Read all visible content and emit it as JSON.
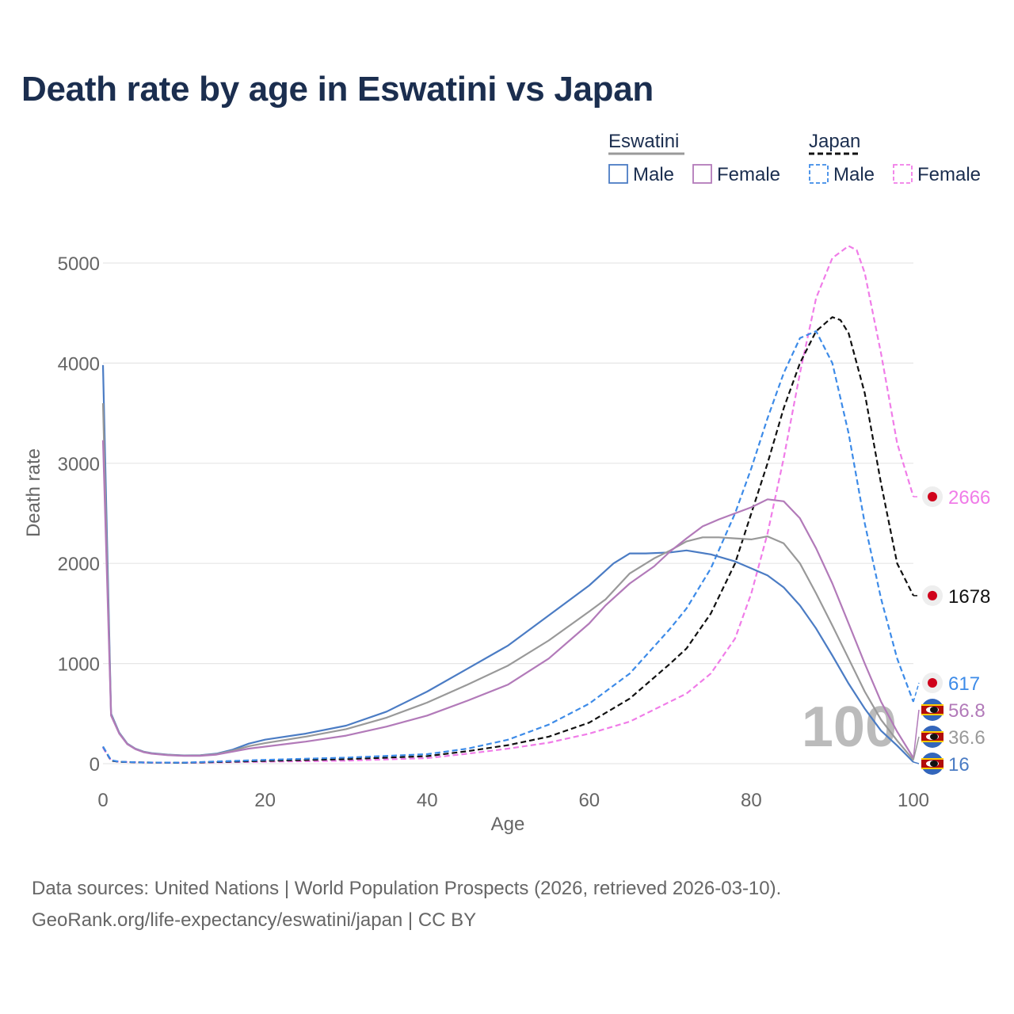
{
  "title": "Death rate by age in Eswatini vs Japan",
  "legend": {
    "groups": [
      {
        "name": "Eswatini",
        "color": "#999999",
        "dash": "solid",
        "items": [
          {
            "label": "Male",
            "color": "#4b7cc4",
            "dash": "solid"
          },
          {
            "label": "Female",
            "color": "#b27ab9",
            "dash": "solid"
          }
        ]
      },
      {
        "name": "Japan",
        "color": "#111111",
        "dash": "dashed",
        "items": [
          {
            "label": "Male",
            "color": "#3d8be8",
            "dash": "dashed"
          },
          {
            "label": "Female",
            "color": "#f07ce8",
            "dash": "dashed"
          }
        ]
      }
    ]
  },
  "sources": {
    "line1": "Data sources: United Nations | World Population Prospects (2026, retrieved 2026-03-10).",
    "line2": "GeoRank.org/life-expectancy/eswatini/japan | CC BY"
  },
  "chart_data": {
    "type": "line",
    "title": "Death rate by age in Eswatini vs Japan",
    "xlabel": "Age",
    "ylabel": "Death rate",
    "xlim": [
      0,
      100
    ],
    "ylim": [
      0,
      5200
    ],
    "xticks": [
      0,
      20,
      40,
      60,
      80,
      100
    ],
    "yticks": [
      0,
      1000,
      2000,
      3000,
      4000,
      5000
    ],
    "grid": true,
    "watermark": "100",
    "series": [
      {
        "name": "Japan Female",
        "country": "Japan",
        "sex": "Female",
        "color": "#f07ce8",
        "dash": "dashed",
        "end_label": "2666",
        "x": [
          0,
          1,
          2,
          5,
          10,
          20,
          30,
          40,
          45,
          50,
          55,
          60,
          65,
          70,
          72,
          75,
          78,
          80,
          82,
          84,
          86,
          88,
          90,
          92,
          93,
          94,
          96,
          98,
          100
        ],
        "values": [
          160,
          30,
          18,
          12,
          9,
          20,
          30,
          55,
          100,
          150,
          210,
          300,
          420,
          620,
          700,
          900,
          1250,
          1700,
          2300,
          3050,
          3900,
          4650,
          5050,
          5170,
          5130,
          4900,
          4100,
          3200,
          2666
        ]
      },
      {
        "name": "Japan Total",
        "country": "Japan",
        "sex": "Total",
        "color": "#111111",
        "dash": "dashed",
        "end_label": "1678",
        "x": [
          0,
          1,
          2,
          5,
          10,
          20,
          30,
          40,
          45,
          50,
          55,
          60,
          65,
          70,
          72,
          75,
          78,
          80,
          82,
          84,
          86,
          88,
          90,
          91,
          92,
          94,
          96,
          98,
          100
        ],
        "values": [
          170,
          30,
          18,
          12,
          9,
          28,
          45,
          75,
          125,
          185,
          270,
          410,
          650,
          1000,
          1150,
          1500,
          2000,
          2500,
          3000,
          3550,
          4000,
          4320,
          4460,
          4430,
          4300,
          3700,
          2800,
          2000,
          1678
        ]
      },
      {
        "name": "Japan Male",
        "country": "Japan",
        "sex": "Male",
        "color": "#3d8be8",
        "dash": "dashed",
        "end_label": "617",
        "x": [
          0,
          1,
          2,
          5,
          10,
          20,
          30,
          40,
          45,
          50,
          55,
          60,
          65,
          70,
          72,
          75,
          78,
          80,
          82,
          84,
          86,
          88,
          90,
          92,
          94,
          96,
          98,
          100
        ],
        "values": [
          170,
          35,
          20,
          12,
          10,
          38,
          60,
          95,
          150,
          240,
          390,
          600,
          900,
          1350,
          1550,
          1950,
          2500,
          2950,
          3450,
          3900,
          4250,
          4320,
          4000,
          3300,
          2400,
          1650,
          1050,
          617
        ]
      },
      {
        "name": "Eswatini Male",
        "country": "Eswatini",
        "sex": "Male",
        "color": "#4b7cc4",
        "dash": "solid",
        "end_label": "16",
        "x": [
          0,
          1,
          2,
          3,
          4,
          5,
          6,
          8,
          10,
          12,
          14,
          16,
          18,
          20,
          25,
          30,
          35,
          40,
          45,
          50,
          55,
          60,
          63,
          65,
          67,
          70,
          72,
          75,
          78,
          80,
          82,
          84,
          86,
          88,
          90,
          92,
          94,
          96,
          98,
          100
        ],
        "values": [
          3980,
          500,
          310,
          200,
          150,
          120,
          105,
          90,
          82,
          85,
          100,
          140,
          200,
          240,
          300,
          380,
          520,
          720,
          950,
          1180,
          1480,
          1780,
          2000,
          2100,
          2100,
          2110,
          2130,
          2090,
          2020,
          1950,
          1880,
          1760,
          1580,
          1350,
          1080,
          800,
          550,
          330,
          180,
          16
        ]
      },
      {
        "name": "Eswatini Total",
        "country": "Eswatini",
        "sex": "Total",
        "color": "#999999",
        "dash": "solid",
        "end_label": "36.6",
        "x": [
          0,
          1,
          2,
          3,
          4,
          5,
          6,
          8,
          10,
          12,
          14,
          16,
          18,
          20,
          25,
          30,
          35,
          40,
          45,
          50,
          55,
          60,
          62,
          65,
          68,
          70,
          72,
          74,
          76,
          78,
          80,
          82,
          84,
          86,
          88,
          90,
          92,
          94,
          96,
          98,
          100
        ],
        "values": [
          3600,
          490,
          305,
          198,
          148,
          118,
          102,
          88,
          80,
          82,
          95,
          130,
          175,
          205,
          270,
          345,
          460,
          610,
          790,
          980,
          1230,
          1520,
          1640,
          1900,
          2050,
          2130,
          2220,
          2260,
          2260,
          2250,
          2240,
          2270,
          2200,
          2000,
          1700,
          1380,
          1050,
          720,
          440,
          230,
          36.6
        ]
      },
      {
        "name": "Eswatini Female",
        "country": "Eswatini",
        "sex": "Female",
        "color": "#b27ab9",
        "dash": "solid",
        "end_label": "56.8",
        "x": [
          0,
          1,
          2,
          3,
          4,
          5,
          6,
          8,
          10,
          12,
          14,
          16,
          18,
          20,
          25,
          30,
          35,
          40,
          45,
          50,
          55,
          60,
          62,
          65,
          68,
          70,
          72,
          74,
          76,
          78,
          80,
          82,
          84,
          86,
          88,
          90,
          92,
          94,
          96,
          98,
          100
        ],
        "values": [
          3230,
          480,
          300,
          195,
          145,
          115,
          100,
          85,
          78,
          78,
          90,
          120,
          150,
          170,
          220,
          280,
          370,
          480,
          630,
          790,
          1050,
          1400,
          1580,
          1800,
          1970,
          2120,
          2250,
          2370,
          2440,
          2500,
          2560,
          2640,
          2620,
          2450,
          2150,
          1800,
          1400,
          1000,
          620,
          320,
          56.8
        ]
      }
    ]
  }
}
